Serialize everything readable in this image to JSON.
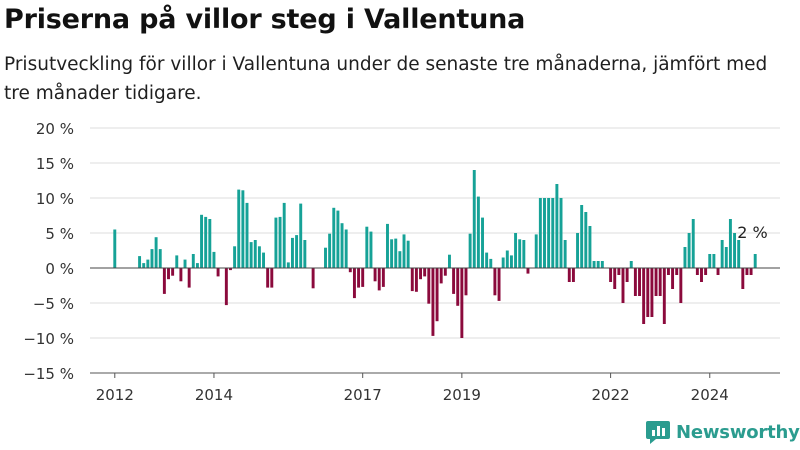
{
  "title": "Priserna på villor steg i Vallentuna",
  "subtitle": "Prisutveckling för villor i Vallentuna under de senaste tre månaderna, jämfört med tre månader tidigare.",
  "logo": {
    "text": "Newsworthy",
    "icon": "bar-chart-logo-icon"
  },
  "colors": {
    "positive": "#16a297",
    "negative": "#8b0a3c",
    "grid": "#dddddd",
    "axis": "#555555"
  },
  "chart_data": {
    "type": "bar",
    "x_tick_labels": [
      "2012",
      "2014",
      "2017",
      "2019",
      "2022",
      "2024"
    ],
    "y_tick_labels": [
      "20 %",
      "15 %",
      "10 %",
      "5 %",
      "0 %",
      "−5 %",
      "−10 %",
      "−15 %"
    ],
    "y_ticks": [
      20,
      15,
      10,
      5,
      0,
      -5,
      -10,
      -15
    ],
    "ylim": [
      -15,
      20
    ],
    "x_range": [
      "2011-07",
      "2025-06"
    ],
    "grid": true,
    "annotation": {
      "text": "2 %"
    },
    "series": [
      {
        "values": [
          {
            "x": "2012-01",
            "y": 5.5
          },
          {
            "x": "2012-07",
            "y": 1.7
          },
          {
            "x": "2012-08",
            "y": 0.7
          },
          {
            "x": "2012-09",
            "y": 1.2
          },
          {
            "x": "2012-10",
            "y": 2.7
          },
          {
            "x": "2012-11",
            "y": 4.4
          },
          {
            "x": "2012-12",
            "y": 2.7
          },
          {
            "x": "2013-01",
            "y": -3.7
          },
          {
            "x": "2013-02",
            "y": -1.6
          },
          {
            "x": "2013-03",
            "y": -1.1
          },
          {
            "x": "2013-04",
            "y": 1.8
          },
          {
            "x": "2013-05",
            "y": -1.9
          },
          {
            "x": "2013-06",
            "y": 1.2
          },
          {
            "x": "2013-07",
            "y": -2.8
          },
          {
            "x": "2013-08",
            "y": 2.0
          },
          {
            "x": "2013-09",
            "y": 0.7
          },
          {
            "x": "2013-10",
            "y": 7.6
          },
          {
            "x": "2013-11",
            "y": 7.3
          },
          {
            "x": "2013-12",
            "y": 7.0
          },
          {
            "x": "2014-01",
            "y": 2.3
          },
          {
            "x": "2014-02",
            "y": -1.2
          },
          {
            "x": "2014-04",
            "y": -5.3
          },
          {
            "x": "2014-05",
            "y": -0.3
          },
          {
            "x": "2014-06",
            "y": 3.1
          },
          {
            "x": "2014-07",
            "y": 11.2
          },
          {
            "x": "2014-08",
            "y": 11.1
          },
          {
            "x": "2014-09",
            "y": 9.3
          },
          {
            "x": "2014-10",
            "y": 3.7
          },
          {
            "x": "2014-11",
            "y": 4.0
          },
          {
            "x": "2014-12",
            "y": 3.1
          },
          {
            "x": "2015-01",
            "y": 2.2
          },
          {
            "x": "2015-02",
            "y": -2.8
          },
          {
            "x": "2015-03",
            "y": -2.8
          },
          {
            "x": "2015-04",
            "y": 7.2
          },
          {
            "x": "2015-05",
            "y": 7.3
          },
          {
            "x": "2015-06",
            "y": 9.3
          },
          {
            "x": "2015-07",
            "y": 0.8
          },
          {
            "x": "2015-08",
            "y": 4.3
          },
          {
            "x": "2015-09",
            "y": 4.7
          },
          {
            "x": "2015-10",
            "y": 9.2
          },
          {
            "x": "2015-11",
            "y": 4.0
          },
          {
            "x": "2016-01",
            "y": -2.9
          },
          {
            "x": "2016-04",
            "y": 2.9
          },
          {
            "x": "2016-05",
            "y": 4.9
          },
          {
            "x": "2016-06",
            "y": 8.6
          },
          {
            "x": "2016-07",
            "y": 8.2
          },
          {
            "x": "2016-08",
            "y": 6.4
          },
          {
            "x": "2016-09",
            "y": 5.5
          },
          {
            "x": "2016-10",
            "y": -0.6
          },
          {
            "x": "2016-11",
            "y": -4.3
          },
          {
            "x": "2016-12",
            "y": -2.8
          },
          {
            "x": "2017-01",
            "y": -2.7
          },
          {
            "x": "2017-02",
            "y": 5.9
          },
          {
            "x": "2017-03",
            "y": 5.2
          },
          {
            "x": "2017-04",
            "y": -1.9
          },
          {
            "x": "2017-05",
            "y": -3.2
          },
          {
            "x": "2017-06",
            "y": -2.7
          },
          {
            "x": "2017-07",
            "y": 6.3
          },
          {
            "x": "2017-08",
            "y": 4.1
          },
          {
            "x": "2017-09",
            "y": 4.2
          },
          {
            "x": "2017-10",
            "y": 2.4
          },
          {
            "x": "2017-11",
            "y": 4.8
          },
          {
            "x": "2017-12",
            "y": 3.9
          },
          {
            "x": "2018-01",
            "y": -3.3
          },
          {
            "x": "2018-02",
            "y": -3.4
          },
          {
            "x": "2018-03",
            "y": -1.6
          },
          {
            "x": "2018-04",
            "y": -1.2
          },
          {
            "x": "2018-05",
            "y": -5.1
          },
          {
            "x": "2018-06",
            "y": -9.7
          },
          {
            "x": "2018-07",
            "y": -7.6
          },
          {
            "x": "2018-08",
            "y": -2.2
          },
          {
            "x": "2018-09",
            "y": -1.1
          },
          {
            "x": "2018-10",
            "y": 1.9
          },
          {
            "x": "2018-11",
            "y": -3.7
          },
          {
            "x": "2018-12",
            "y": -5.4
          },
          {
            "x": "2019-01",
            "y": -10.0
          },
          {
            "x": "2019-02",
            "y": -3.9
          },
          {
            "x": "2019-03",
            "y": 4.9
          },
          {
            "x": "2019-04",
            "y": 14.0
          },
          {
            "x": "2019-05",
            "y": 10.2
          },
          {
            "x": "2019-06",
            "y": 7.2
          },
          {
            "x": "2019-07",
            "y": 2.2
          },
          {
            "x": "2019-08",
            "y": 1.3
          },
          {
            "x": "2019-09",
            "y": -3.9
          },
          {
            "x": "2019-10",
            "y": -4.7
          },
          {
            "x": "2019-11",
            "y": 1.5
          },
          {
            "x": "2019-12",
            "y": 2.5
          },
          {
            "x": "2020-01",
            "y": 1.8
          },
          {
            "x": "2020-02",
            "y": 5.0
          },
          {
            "x": "2020-03",
            "y": 4.1
          },
          {
            "x": "2020-04",
            "y": 4.0
          },
          {
            "x": "2020-05",
            "y": -0.8
          },
          {
            "x": "2020-07",
            "y": 4.8
          },
          {
            "x": "2020-08",
            "y": 10.0
          },
          {
            "x": "2020-09",
            "y": 10.0
          },
          {
            "x": "2020-10",
            "y": 10.0
          },
          {
            "x": "2020-11",
            "y": 10.0
          },
          {
            "x": "2020-12",
            "y": 12.0
          },
          {
            "x": "2021-01",
            "y": 10.0
          },
          {
            "x": "2021-02",
            "y": 4.0
          },
          {
            "x": "2021-03",
            "y": -2.0
          },
          {
            "x": "2021-04",
            "y": -2.0
          },
          {
            "x": "2021-05",
            "y": 5.0
          },
          {
            "x": "2021-06",
            "y": 9.0
          },
          {
            "x": "2021-07",
            "y": 8.0
          },
          {
            "x": "2021-08",
            "y": 6.0
          },
          {
            "x": "2021-09",
            "y": 1.0
          },
          {
            "x": "2021-10",
            "y": 1.0
          },
          {
            "x": "2021-11",
            "y": 1.0
          },
          {
            "x": "2022-01",
            "y": -2.0
          },
          {
            "x": "2022-02",
            "y": -3.0
          },
          {
            "x": "2022-03",
            "y": -1.0
          },
          {
            "x": "2022-04",
            "y": -5.0
          },
          {
            "x": "2022-05",
            "y": -2.0
          },
          {
            "x": "2022-06",
            "y": 1.0
          },
          {
            "x": "2022-07",
            "y": -4.0
          },
          {
            "x": "2022-08",
            "y": -4.0
          },
          {
            "x": "2022-09",
            "y": -8.0
          },
          {
            "x": "2022-10",
            "y": -7.0
          },
          {
            "x": "2022-11",
            "y": -7.0
          },
          {
            "x": "2022-12",
            "y": -4.0
          },
          {
            "x": "2023-01",
            "y": -4.0
          },
          {
            "x": "2023-02",
            "y": -8.0
          },
          {
            "x": "2023-03",
            "y": -1.0
          },
          {
            "x": "2023-04",
            "y": -3.0
          },
          {
            "x": "2023-05",
            "y": -1.0
          },
          {
            "x": "2023-06",
            "y": -5.0
          },
          {
            "x": "2023-07",
            "y": 3.0
          },
          {
            "x": "2023-08",
            "y": 5.0
          },
          {
            "x": "2023-09",
            "y": 7.0
          },
          {
            "x": "2023-10",
            "y": -1.0
          },
          {
            "x": "2023-11",
            "y": -2.0
          },
          {
            "x": "2023-12",
            "y": -1.0
          },
          {
            "x": "2024-01",
            "y": 2.0
          },
          {
            "x": "2024-02",
            "y": 2.0
          },
          {
            "x": "2024-03",
            "y": -1.0
          },
          {
            "x": "2024-04",
            "y": 4.0
          },
          {
            "x": "2024-05",
            "y": 3.0
          },
          {
            "x": "2024-06",
            "y": 7.0
          },
          {
            "x": "2024-07",
            "y": 5.0
          },
          {
            "x": "2024-08",
            "y": 4.0
          },
          {
            "x": "2024-09",
            "y": -3.0
          },
          {
            "x": "2024-10",
            "y": -1.0
          },
          {
            "x": "2024-11",
            "y": -1.0
          },
          {
            "x": "2024-12",
            "y": 2.0
          }
        ]
      }
    ]
  }
}
